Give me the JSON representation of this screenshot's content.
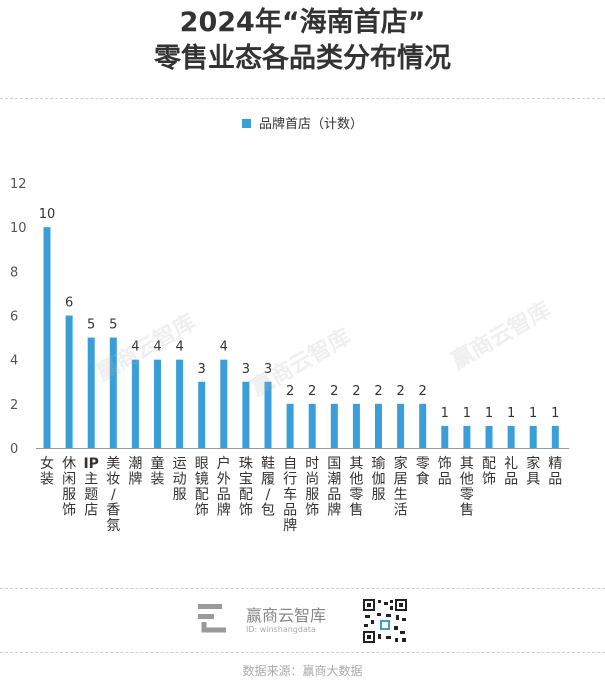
{
  "title_line1": "2024年“海南首店”",
  "title_line2": "零售业态各品类分布情况",
  "legend_label": "品牌首店（计数）",
  "brand_name": "赢商云智库",
  "brand_id": "ID: winshangdata",
  "watermark": "赢商云智库",
  "source": "数据来源：赢商大数据",
  "colors": {
    "bar": "#3a9fd8",
    "text": "#333333",
    "axis": "#555555"
  },
  "chart_data": {
    "type": "bar",
    "title": "2024年“海南首店”零售业态各品类分布情况",
    "ylim": [
      0,
      12
    ],
    "yticks": [
      0,
      2,
      4,
      6,
      8,
      10,
      12
    ],
    "grid": false,
    "legend_position": "top-center",
    "series": [
      {
        "name": "品牌首店（计数）"
      }
    ],
    "categories": [
      "女装",
      "休闲服饰",
      "IP主题店",
      "美妆/香氛",
      "潮牌",
      "童装",
      "运动服",
      "眼镜配饰",
      "户外品牌",
      "珠宝配饰",
      "鞋履/包",
      "自行车品牌",
      "时尚服饰",
      "国潮品牌",
      "其他零售",
      "瑜伽服",
      "家居生活",
      "零食",
      "饰品",
      "其他零售",
      "配饰",
      "礼品",
      "家具",
      "精品"
    ],
    "values": [
      10,
      6,
      5,
      5,
      4,
      4,
      4,
      3,
      4,
      3,
      3,
      2,
      2,
      2,
      2,
      2,
      2,
      2,
      1,
      1,
      1,
      1,
      1,
      1
    ]
  }
}
